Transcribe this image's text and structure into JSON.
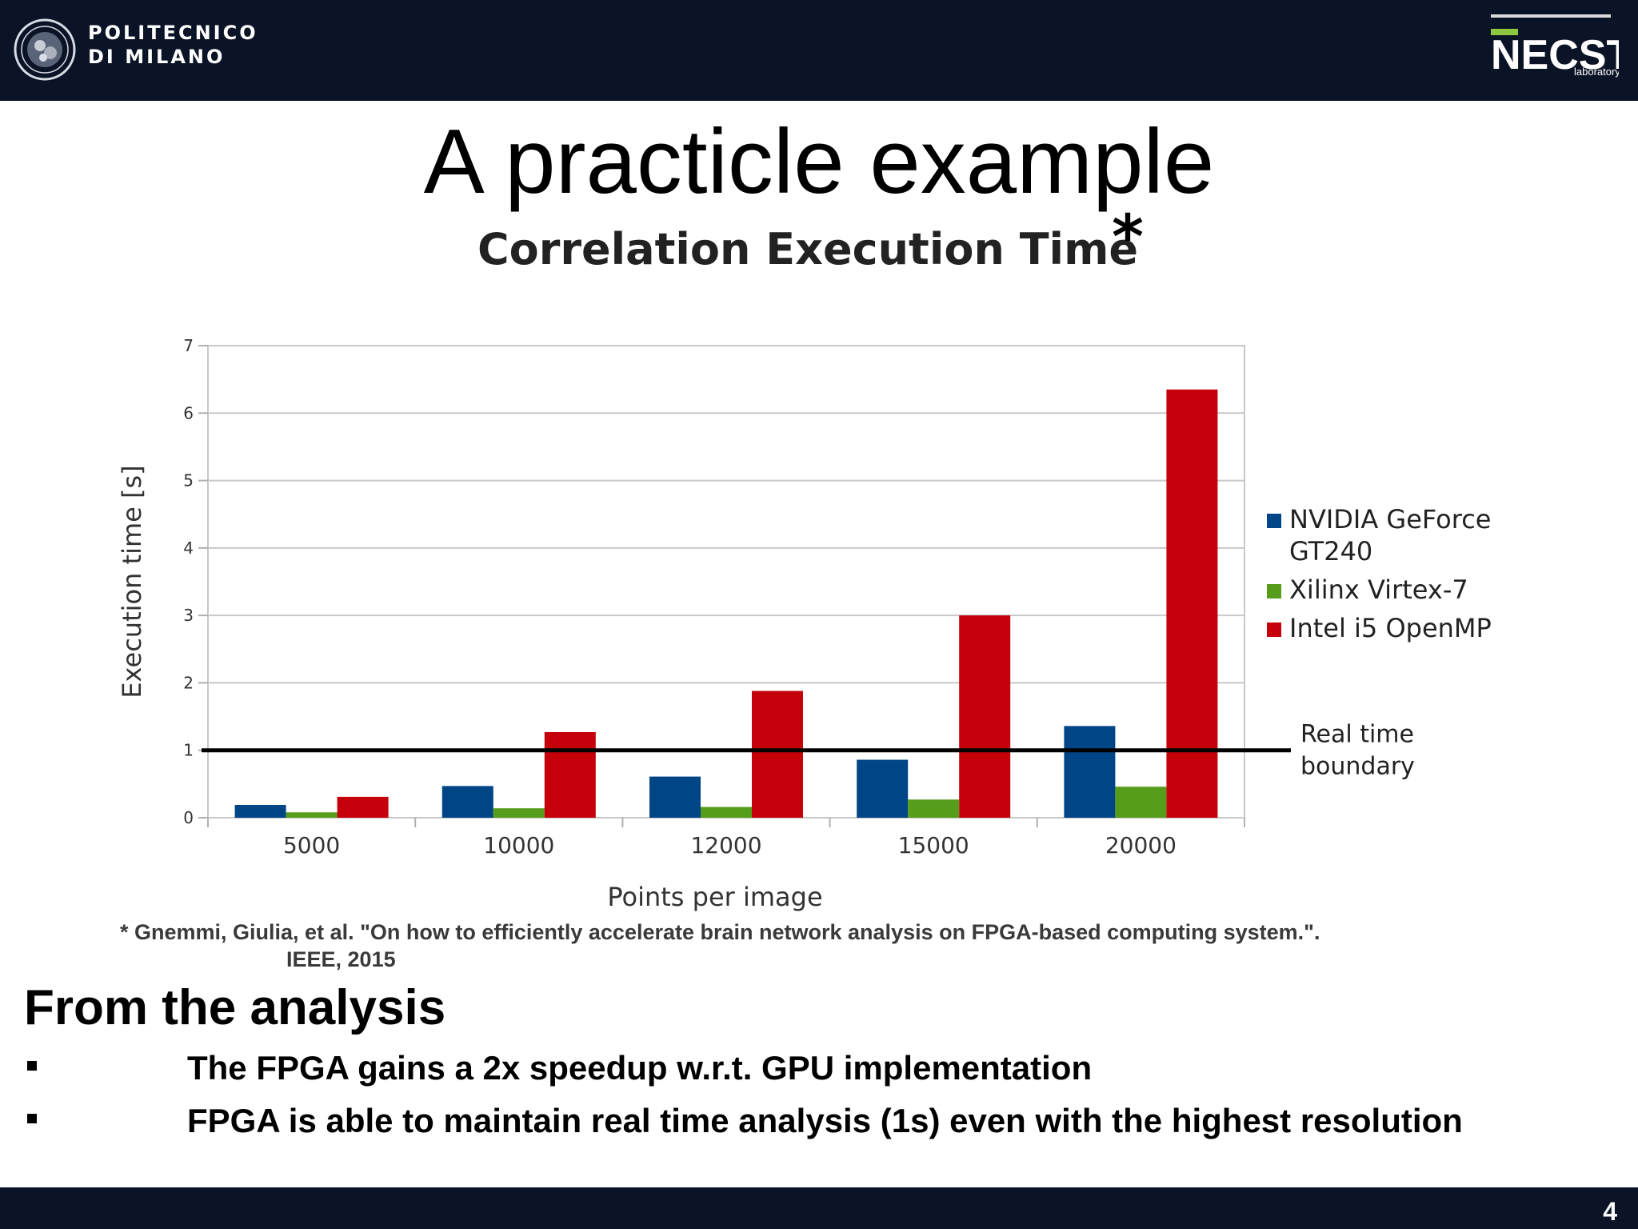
{
  "header": {
    "university_line1": "POLITECNICO",
    "university_line2": "DI MILANO",
    "lab_logo_text": "NECST",
    "lab_subtext": "laboratory"
  },
  "slide": {
    "title": "A practicle example",
    "page_number": "4"
  },
  "chart_data": {
    "type": "bar",
    "title": "Correlation Execution Time",
    "title_marker": "*",
    "xlabel": "Points per image",
    "ylabel": "Execution time [s]",
    "ylim": [
      0,
      7
    ],
    "yticks": [
      "0",
      "1",
      "2",
      "3",
      "4",
      "5",
      "6",
      "7"
    ],
    "grid": true,
    "legend_position": "right",
    "categories": [
      "5000",
      "10000",
      "12000",
      "15000",
      "20000"
    ],
    "series": [
      {
        "name": "NVIDIA GeForce GT240",
        "legend_lines": [
          "NVIDIA GeForce",
          "GT240"
        ],
        "color": "#004586",
        "values": [
          0.19,
          0.47,
          0.61,
          0.86,
          1.36
        ]
      },
      {
        "name": "Xilinx Virtex-7",
        "legend_lines": [
          "Xilinx Virtex-7"
        ],
        "color": "#579d1c",
        "values": [
          0.08,
          0.14,
          0.16,
          0.27,
          0.46
        ]
      },
      {
        "name": "Intel i5 OpenMP",
        "legend_lines": [
          "Intel i5 OpenMP"
        ],
        "color": "#c5000b",
        "values": [
          0.31,
          1.27,
          1.88,
          3.0,
          6.35
        ]
      }
    ],
    "reference_line": {
      "value": 1,
      "label_lines": [
        "Real time",
        "boundary"
      ],
      "color": "#000000"
    }
  },
  "citation": {
    "line1": "* Gnemmi, Giulia, et al. \"On how to efficiently accelerate brain network analysis on FPGA-based computing system.\".",
    "line2": "IEEE, 2015"
  },
  "analysis": {
    "heading": "From the analysis",
    "bullets": [
      "The FPGA gains a 2x speedup w.r.t. GPU implementation",
      "FPGA is able to maintain real time analysis (1s) even with the highest resolution"
    ]
  }
}
